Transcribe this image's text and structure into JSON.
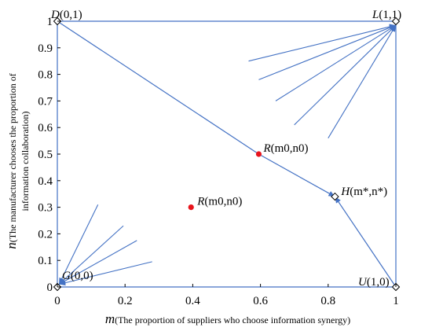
{
  "chart_data": {
    "type": "scatter",
    "title": "",
    "xlabel_main": "m",
    "xlabel_sub": "(The proportion of suppliers who choose information synergy)",
    "ylabel_main": "n",
    "ylabel_sub_line1": "(The manufacturer chooses the proportion of",
    "ylabel_sub_line2": "information collaboration)",
    "xlim": [
      0,
      1
    ],
    "ylim": [
      0,
      1
    ],
    "xticks": [
      0,
      0.2,
      0.4,
      0.6,
      0.8,
      1
    ],
    "xtick_labels": [
      "0",
      "0.2",
      "0.4",
      "0.6",
      "0.8",
      "1"
    ],
    "yticks": [
      0,
      0.1,
      0.2,
      0.3,
      0.4,
      0.5,
      0.6,
      0.7,
      0.8,
      0.9,
      1
    ],
    "ytick_labels": [
      "0",
      "0.1",
      "0.2",
      "0.3",
      "0.4",
      "0.5",
      "0.6",
      "0.7",
      "0.8",
      "0.9",
      "1"
    ],
    "line_color": "#4472c4",
    "point_color": "#e8141c",
    "corner_points": [
      {
        "x": 0,
        "y": 1,
        "label": "D(0,1)"
      },
      {
        "x": 1,
        "y": 1,
        "label": "L(1,1)"
      },
      {
        "x": 0,
        "y": 0,
        "label": "G(0,0)"
      },
      {
        "x": 1,
        "y": 0,
        "label": "U(1,0)"
      }
    ],
    "saddle_point": {
      "x": 0.82,
      "y": 0.34,
      "label": "H(m*,n*)"
    },
    "initial_points": [
      {
        "x": 0.595,
        "y": 0.5,
        "label": "R(m0,n0)"
      },
      {
        "x": 0.395,
        "y": 0.3,
        "label": "R(m0,n0)"
      }
    ],
    "separatrix_paths": [
      [
        [
          0,
          1
        ],
        [
          0.595,
          0.5
        ],
        [
          0.82,
          0.34
        ]
      ],
      [
        [
          1,
          0
        ],
        [
          0.82,
          0.34
        ]
      ]
    ],
    "trajectories_to_L": [
      [
        [
          0.565,
          0.85
        ],
        [
          1,
          0.985
        ]
      ],
      [
        [
          0.595,
          0.78
        ],
        [
          1,
          0.985
        ]
      ],
      [
        [
          0.645,
          0.7
        ],
        [
          1,
          0.985
        ]
      ],
      [
        [
          0.7,
          0.61
        ],
        [
          1,
          0.985
        ]
      ],
      [
        [
          0.8,
          0.56
        ],
        [
          1,
          0.985
        ]
      ]
    ],
    "trajectories_to_G": [
      [
        [
          0.12,
          0.31
        ],
        [
          0.005,
          0.01
        ]
      ],
      [
        [
          0.195,
          0.23
        ],
        [
          0.005,
          0.01
        ]
      ],
      [
        [
          0.235,
          0.175
        ],
        [
          0.005,
          0.01
        ]
      ],
      [
        [
          0.28,
          0.095
        ],
        [
          0.005,
          0.01
        ]
      ]
    ],
    "grid": false,
    "legend": "none"
  }
}
